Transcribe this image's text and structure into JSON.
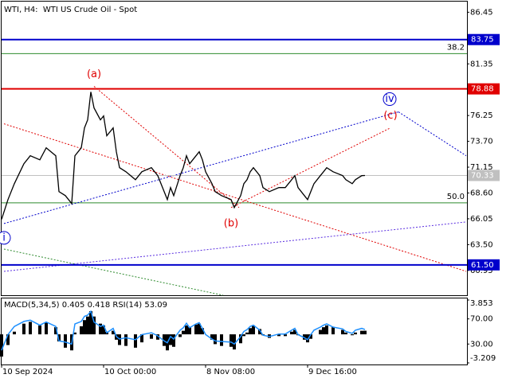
{
  "chart_data": [
    {
      "type": "price",
      "title": "WTI, H4:  WTI US Crude Oil - Spot",
      "xlim": [
        0,
        146
      ],
      "xticks": [
        {
          "value": 0,
          "label": "10 Sep 2024"
        },
        {
          "value": 32,
          "label": "10 Oct 00:00"
        },
        {
          "value": 64,
          "label": "8 Nov 08:00"
        },
        {
          "value": 96,
          "label": "9 Dec 16:00"
        }
      ],
      "ylim": [
        58.5,
        87.5
      ],
      "yticks": [
        {
          "value": 86.45,
          "label": "86.45"
        },
        {
          "value": 81.35,
          "label": "81.35"
        },
        {
          "value": 76.25,
          "label": "76.25"
        },
        {
          "value": 73.7,
          "label": "73.70"
        },
        {
          "value": 71.15,
          "label": "71.15"
        },
        {
          "value": 68.6,
          "label": "68.60"
        },
        {
          "value": 66.05,
          "label": "66.05"
        },
        {
          "value": 63.5,
          "label": "63.50"
        },
        {
          "value": 60.95,
          "label": "60.95"
        }
      ],
      "x": [
        0,
        2,
        4,
        7,
        9,
        12,
        14,
        17,
        18,
        20,
        22,
        23,
        25,
        26,
        27,
        28,
        29,
        31,
        32,
        33,
        35,
        36,
        37,
        39,
        42,
        44,
        47,
        49,
        51,
        52,
        53,
        54,
        56,
        57,
        58,
        59,
        61,
        62,
        63,
        64,
        66,
        67,
        69,
        72,
        73,
        75,
        76,
        77,
        78,
        79,
        81,
        82,
        84,
        87,
        89,
        91,
        92,
        93,
        95,
        96,
        97,
        98,
        100,
        101,
        102,
        104,
        107,
        108,
        110,
        111,
        113,
        114
      ],
      "series": [
        {
          "color": "#000000",
          "values": [
            66.0,
            67.95,
            69.52,
            71.49,
            72.28,
            71.88,
            73.06,
            72.28,
            68.73,
            68.34,
            67.55,
            72.28,
            73.06,
            75.03,
            75.82,
            78.58,
            77.0,
            75.82,
            76.21,
            74.25,
            75.03,
            72.67,
            71.1,
            70.7,
            69.91,
            70.7,
            71.1,
            70.31,
            68.73,
            67.95,
            69.13,
            68.34,
            70.31,
            71.1,
            72.28,
            71.49,
            72.28,
            72.67,
            71.88,
            70.7,
            69.52,
            68.73,
            68.34,
            67.95,
            67.16,
            68.34,
            69.52,
            69.91,
            70.7,
            71.1,
            70.31,
            69.13,
            68.73,
            69.13,
            69.13,
            69.91,
            70.31,
            69.13,
            68.34,
            67.95,
            68.73,
            69.52,
            70.31,
            70.7,
            71.1,
            70.7,
            70.31,
            69.91,
            69.52,
            69.91,
            70.31,
            70.33
          ]
        }
      ],
      "levels": [
        {
          "value": 83.75,
          "label": "83.75",
          "color": "#0000cc",
          "box": true
        },
        {
          "value": 78.88,
          "label": "78.88",
          "color": "#e00000",
          "box": true
        },
        {
          "value": 61.5,
          "label": "61.50",
          "color": "#0000cc",
          "box": true
        },
        {
          "value": 70.33,
          "label": "70.33",
          "color": "#c0c0c0",
          "box": true,
          "thin": true
        }
      ],
      "fib_levels": [
        {
          "value": 82.36,
          "label": "38.2",
          "color": "#2e8b2e"
        },
        {
          "value": 67.63,
          "label": "50.0",
          "color": "#2e8b2e"
        }
      ],
      "trend_lines": [
        {
          "color": "#e00000",
          "points": [
            [
              29,
              79.13
            ],
            [
              74.5,
              67.16
            ]
          ]
        },
        {
          "color": "#e00000",
          "points": [
            [
              0.75,
              75.43
            ],
            [
              145.75,
              60.86
            ]
          ]
        },
        {
          "color": "#e00000",
          "points": [
            [
              72,
              67.16
            ],
            [
              122,
              75.03
            ]
          ]
        },
        {
          "color": "#0000cc",
          "points": [
            [
              0.75,
              65.58
            ],
            [
              124.5,
              76.61
            ]
          ]
        },
        {
          "color": "#0000cc",
          "points": [
            [
              124.5,
              76.61
            ],
            [
              145.75,
              72.28
            ]
          ]
        },
        {
          "color": "#5a2ee0",
          "points": [
            [
              0.75,
              60.86
            ],
            [
              145.75,
              65.74
            ]
          ]
        },
        {
          "color": "#2e8b2e",
          "points": [
            [
              0.75,
              63.06
            ],
            [
              69.5,
              58.5
            ]
          ]
        }
      ],
      "annotations": [
        {
          "text": "(a)",
          "x": 29,
          "y": 80.31,
          "color": "#e00000",
          "circled": false
        },
        {
          "text": "(b)",
          "x": 72,
          "y": 65.58,
          "color": "#e00000",
          "circled": false
        },
        {
          "text": "(c)",
          "x": 122,
          "y": 76.21,
          "color": "#e00000",
          "circled": false
        },
        {
          "text": "iv",
          "x": 121.75,
          "y": 77.87,
          "color": "#0000cc",
          "circled": true
        },
        {
          "text": "i",
          "x": 0.75,
          "y": 64.17,
          "color": "#0000cc",
          "circled": true
        }
      ]
    },
    {
      "type": "macd",
      "title": "MACD(5,34,5) 0.405 0.418 RSI(14) 53.09",
      "ylim": [
        -3.209,
        3.853
      ],
      "rsi_ylim": [
        0,
        100
      ],
      "rsi_ticks": [
        {
          "value": 70,
          "label": "70.00"
        },
        {
          "value": 30,
          "label": "30.00"
        }
      ],
      "macd": {
        "color": "#000000",
        "values": [
          -2.5,
          -1.2,
          0.3,
          1.2,
          1.4,
          1.0,
          1.3,
          0.8,
          -0.8,
          -1.5,
          -1.8,
          0.2,
          0.9,
          1.6,
          2.0,
          2.6,
          2.0,
          1.2,
          1.0,
          0.3,
          0.4,
          -0.6,
          -1.2,
          -1.3,
          -1.5,
          -0.9,
          -0.5,
          -0.6,
          -1.3,
          -1.8,
          -1.2,
          -1.4,
          -0.3,
          0.4,
          1.0,
          0.8,
          1.1,
          1.2,
          0.7,
          0.0,
          -0.6,
          -1.1,
          -1.3,
          -1.4,
          -1.7,
          -1.0,
          -0.2,
          0.2,
          0.7,
          1.0,
          0.6,
          -0.1,
          -0.4,
          -0.2,
          -0.2,
          0.3,
          0.5,
          -0.1,
          -0.6,
          -0.9,
          -0.5,
          0.0,
          0.5,
          0.8,
          1.0,
          0.8,
          0.5,
          0.2,
          -0.1,
          0.2,
          0.4,
          0.405
        ]
      },
      "rsi": {
        "color": "#1e90ff",
        "values": [
          20,
          45,
          58,
          66,
          68,
          60,
          65,
          58,
          35,
          33,
          30,
          62,
          66,
          74,
          76,
          82,
          65,
          58,
          60,
          48,
          55,
          42,
          38,
          40,
          37,
          45,
          48,
          43,
          35,
          32,
          42,
          38,
          52,
          56,
          63,
          56,
          62,
          64,
          55,
          45,
          38,
          35,
          34,
          33,
          30,
          42,
          50,
          53,
          58,
          60,
          52,
          44,
          42,
          46,
          46,
          52,
          55,
          45,
          40,
          37,
          45,
          52,
          57,
          60,
          62,
          57,
          54,
          50,
          47,
          52,
          55,
          53.09
        ]
      }
    }
  ]
}
